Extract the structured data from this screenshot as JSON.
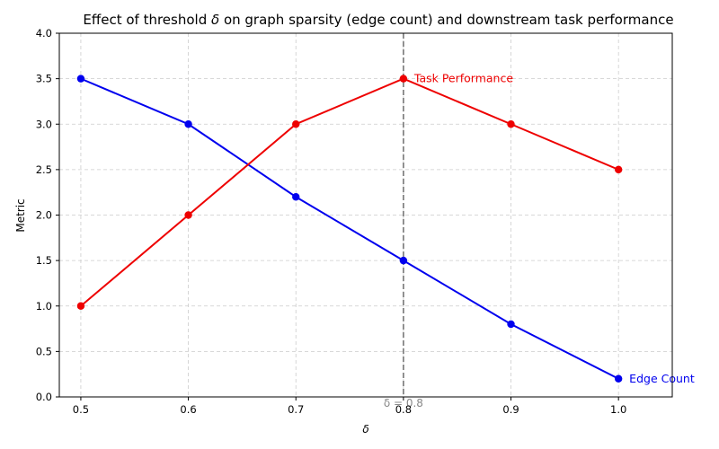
{
  "chart_data": {
    "type": "line",
    "title_parts": {
      "before": "Effect of threshold ",
      "symbol": "δ",
      "after": " on graph sparsity (edge count) and downstream task performance"
    },
    "xlabel": "δ",
    "ylabel": "Metric",
    "x": [
      0.5,
      0.6,
      0.7,
      0.8,
      0.9,
      1.0
    ],
    "xticks": [
      "0.5",
      "0.6",
      "0.7",
      "0.8",
      "0.9",
      "1.0"
    ],
    "yticks": [
      "0.0",
      "0.5",
      "1.0",
      "1.5",
      "2.0",
      "2.5",
      "3.0",
      "3.5",
      "4.0"
    ],
    "xlim": [
      0.48,
      1.05
    ],
    "ylim": [
      0,
      4
    ],
    "grid": true,
    "series": [
      {
        "name": "Edge Count",
        "color": "#0000ee",
        "values": [
          3.5,
          3.0,
          2.2,
          1.5,
          0.8,
          0.2
        ]
      },
      {
        "name": "Task Performance",
        "color": "#ee0000",
        "values": [
          1.0,
          2.0,
          3.0,
          3.5,
          3.0,
          2.5
        ]
      }
    ],
    "vline": {
      "x": 0.8,
      "label": "δ = 0.8",
      "color": "#777777"
    }
  }
}
